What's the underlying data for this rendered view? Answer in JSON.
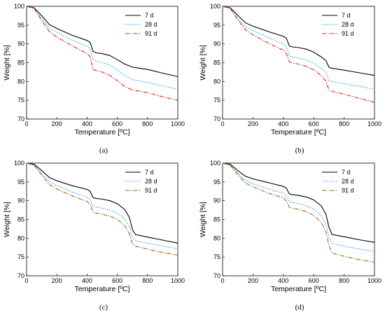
{
  "chart_data": [
    {
      "type": "line",
      "caption": "(a)",
      "xlabel": "Temperature [ºC]",
      "ylabel": "Weight [%]",
      "xlim": [
        0,
        1000
      ],
      "ylim": [
        70,
        100
      ],
      "xticks": [
        0,
        200,
        400,
        600,
        800,
        1000
      ],
      "yticks": [
        70,
        75,
        80,
        85,
        90,
        95,
        100
      ],
      "grid": false,
      "legend": "top-right",
      "series": [
        {
          "name": "7 d",
          "color": "#000000",
          "dash": "solid",
          "x": [
            0,
            50,
            100,
            150,
            200,
            300,
            400,
            420,
            440,
            460,
            500,
            550,
            600,
            650,
            700,
            750,
            800,
            900,
            1000
          ],
          "y": [
            100,
            99.6,
            97.5,
            95.2,
            94.1,
            92.3,
            90.9,
            90.4,
            88.0,
            87.6,
            87.4,
            86.9,
            85.8,
            84.6,
            83.8,
            83.5,
            83.2,
            82.2,
            81.3
          ]
        },
        {
          "name": "28 d",
          "color": "#1aa0e6",
          "dash": "dot",
          "x": [
            0,
            50,
            100,
            150,
            200,
            300,
            400,
            420,
            440,
            460,
            500,
            550,
            600,
            650,
            700,
            750,
            800,
            900,
            1000
          ],
          "y": [
            100,
            99.5,
            96.8,
            94.2,
            93.1,
            91.0,
            89.3,
            88.8,
            85.8,
            85.4,
            85.0,
            84.4,
            83.0,
            81.5,
            80.5,
            80.1,
            79.7,
            78.8,
            77.9
          ]
        },
        {
          "name": "91 d",
          "color": "#e02020",
          "dash": "dashdot",
          "x": [
            0,
            50,
            100,
            150,
            200,
            300,
            400,
            420,
            440,
            460,
            500,
            550,
            600,
            650,
            700,
            750,
            800,
            900,
            1000
          ],
          "y": [
            100,
            99.4,
            96.2,
            93.3,
            91.8,
            89.5,
            87.4,
            86.6,
            83.2,
            82.9,
            82.5,
            81.6,
            80.2,
            78.6,
            77.7,
            77.4,
            77.0,
            75.9,
            75.0
          ]
        }
      ]
    },
    {
      "type": "line",
      "caption": "(b)",
      "xlabel": "Temperature [ºC]",
      "ylabel": "Weight [%]",
      "xlim": [
        0,
        1000
      ],
      "ylim": [
        70,
        100
      ],
      "xticks": [
        0,
        200,
        400,
        600,
        800,
        1000
      ],
      "yticks": [
        70,
        75,
        80,
        85,
        90,
        95,
        100
      ],
      "grid": false,
      "legend": "top-right",
      "series": [
        {
          "name": "7 d",
          "color": "#000000",
          "dash": "solid",
          "x": [
            0,
            50,
            100,
            150,
            200,
            300,
            400,
            420,
            440,
            460,
            500,
            550,
            600,
            650,
            680,
            700,
            720,
            800,
            900,
            1000
          ],
          "y": [
            100,
            99.6,
            97.6,
            95.6,
            94.7,
            93.3,
            92.0,
            91.5,
            89.4,
            89.2,
            89.0,
            88.6,
            87.8,
            86.5,
            85.6,
            83.8,
            83.5,
            83.0,
            82.3,
            81.6
          ]
        },
        {
          "name": "28 d",
          "color": "#1aa0e6",
          "dash": "dot",
          "x": [
            0,
            50,
            100,
            150,
            200,
            300,
            400,
            420,
            440,
            460,
            500,
            550,
            600,
            650,
            680,
            700,
            720,
            800,
            900,
            1000
          ],
          "y": [
            100,
            99.5,
            96.8,
            94.6,
            93.5,
            91.7,
            90.0,
            89.3,
            86.8,
            86.5,
            86.2,
            85.7,
            84.8,
            83.4,
            82.4,
            80.2,
            80.0,
            79.4,
            78.7,
            77.9
          ]
        },
        {
          "name": "91 d",
          "color": "#e02020",
          "dash": "dashdot",
          "x": [
            0,
            50,
            100,
            150,
            200,
            300,
            400,
            420,
            440,
            460,
            500,
            550,
            600,
            650,
            680,
            700,
            720,
            800,
            900,
            1000
          ],
          "y": [
            100,
            99.4,
            96.4,
            93.8,
            92.4,
            90.2,
            88.3,
            87.4,
            85.2,
            84.9,
            84.6,
            84.0,
            83.1,
            81.5,
            80.1,
            77.7,
            77.4,
            76.6,
            75.5,
            74.4
          ]
        }
      ]
    },
    {
      "type": "line",
      "caption": "(c)",
      "xlabel": "Temperature [ºC]",
      "ylabel": "Weight [%]",
      "xlim": [
        0,
        1000
      ],
      "ylim": [
        70,
        100
      ],
      "xticks": [
        0,
        200,
        400,
        600,
        800,
        1000
      ],
      "yticks": [
        70,
        75,
        80,
        85,
        90,
        95,
        100
      ],
      "grid": false,
      "legend": "top-right",
      "series": [
        {
          "name": "7 d",
          "color": "#000000",
          "dash": "solid",
          "x": [
            0,
            50,
            100,
            150,
            200,
            300,
            400,
            420,
            440,
            460,
            500,
            550,
            600,
            650,
            680,
            700,
            720,
            800,
            900,
            1000
          ],
          "y": [
            100,
            99.7,
            98.0,
            96.2,
            95.3,
            94.0,
            93.0,
            92.5,
            90.8,
            90.6,
            90.4,
            90.0,
            89.2,
            87.6,
            85.5,
            82.3,
            81.0,
            80.3,
            79.5,
            78.7
          ]
        },
        {
          "name": "28 d",
          "color": "#1aa0e6",
          "dash": "dot",
          "x": [
            0,
            50,
            100,
            150,
            200,
            300,
            400,
            420,
            440,
            460,
            500,
            550,
            600,
            650,
            680,
            700,
            720,
            800,
            900,
            1000
          ],
          "y": [
            100,
            99.5,
            97.2,
            95.0,
            94.0,
            92.3,
            91.0,
            90.4,
            88.5,
            88.3,
            88.0,
            87.5,
            86.7,
            85.1,
            83.0,
            80.2,
            79.4,
            78.7,
            77.9,
            77.2
          ]
        },
        {
          "name": "91 d",
          "color": "#8b6914",
          "dash": "dashdot",
          "x": [
            0,
            50,
            100,
            150,
            200,
            300,
            400,
            420,
            440,
            460,
            500,
            550,
            600,
            650,
            680,
            700,
            720,
            800,
            900,
            1000
          ],
          "y": [
            100,
            99.4,
            96.8,
            94.3,
            93.1,
            91.3,
            89.8,
            89.0,
            86.9,
            86.7,
            86.4,
            85.9,
            85.0,
            83.3,
            81.2,
            78.5,
            77.9,
            77.1,
            76.2,
            75.5
          ]
        }
      ]
    },
    {
      "type": "line",
      "caption": "(d)",
      "xlabel": "Temperature [ºC]",
      "ylabel": "Weight [%]",
      "xlim": [
        0,
        1000
      ],
      "ylim": [
        70,
        100
      ],
      "xticks": [
        0,
        200,
        400,
        600,
        800,
        1000
      ],
      "yticks": [
        70,
        75,
        80,
        85,
        90,
        95,
        100
      ],
      "grid": false,
      "legend": "top-right",
      "series": [
        {
          "name": "7 d",
          "color": "#000000",
          "dash": "solid",
          "x": [
            0,
            50,
            100,
            150,
            200,
            300,
            400,
            420,
            440,
            460,
            500,
            550,
            600,
            650,
            680,
            700,
            720,
            800,
            900,
            1000
          ],
          "y": [
            100,
            99.7,
            98.0,
            96.5,
            95.8,
            94.8,
            93.8,
            93.3,
            91.8,
            91.6,
            91.4,
            91.0,
            90.2,
            88.6,
            86.4,
            83.0,
            81.0,
            80.4,
            79.6,
            78.9
          ]
        },
        {
          "name": "28 d",
          "color": "#1aa0e6",
          "dash": "dot",
          "x": [
            0,
            50,
            100,
            150,
            200,
            300,
            400,
            420,
            440,
            460,
            500,
            550,
            600,
            650,
            680,
            700,
            720,
            800,
            900,
            1000
          ],
          "y": [
            100,
            99.5,
            97.3,
            95.3,
            94.5,
            93.1,
            92.0,
            91.3,
            89.7,
            89.5,
            89.2,
            88.7,
            87.8,
            86.0,
            83.7,
            80.3,
            78.6,
            77.9,
            77.1,
            76.5
          ]
        },
        {
          "name": "91 d",
          "color": "#8b6914",
          "dash": "dashdot",
          "x": [
            0,
            50,
            100,
            150,
            200,
            300,
            400,
            420,
            440,
            460,
            500,
            550,
            600,
            650,
            680,
            700,
            720,
            800,
            900,
            1000
          ],
          "y": [
            100,
            99.4,
            96.9,
            94.7,
            93.7,
            92.0,
            90.8,
            89.9,
            88.2,
            88.0,
            87.7,
            87.1,
            86.1,
            84.2,
            81.7,
            78.1,
            76.1,
            75.2,
            74.3,
            73.6
          ]
        }
      ]
    }
  ]
}
